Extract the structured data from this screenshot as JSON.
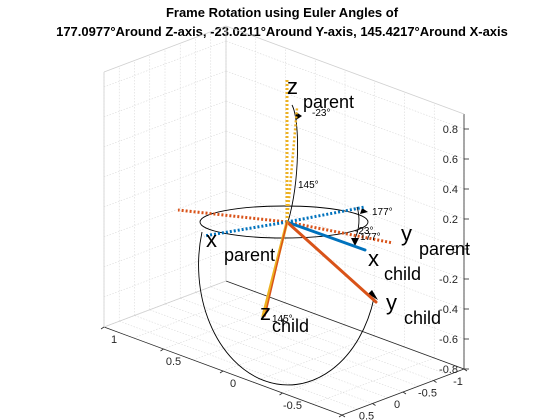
{
  "title_line1": "Frame Rotation using Euler Angles of",
  "title_line2": "177.0977°Around Z-axis, -23.0211°Around Y-axis, 145.4217°Around X-axis",
  "colors": {
    "x_axis": "#0072BD",
    "y_axis": "#D95319",
    "z_axis": "#EDB120",
    "arc": "#000000",
    "grid": "#d9d9d9",
    "box": "#262626"
  },
  "chart_data": {
    "type": "line",
    "view": "3d",
    "grid": true,
    "box": true,
    "xlim": [
      -1,
      1
    ],
    "ylim": [
      -1,
      1
    ],
    "zlim": [
      -0.8,
      0.9
    ],
    "x_ticks": [
      "-1",
      "-0.5",
      "0",
      "0.5",
      "1"
    ],
    "y_ticks": [
      "1",
      "0.5",
      "0",
      "-0.5",
      "-1"
    ],
    "z_ticks": [
      "-0.8",
      "-0.6",
      "-0.4",
      "-0.2",
      "0",
      "0.2",
      "0.4",
      "0.6",
      "0.8"
    ],
    "parent_frame": {
      "style": "dotted",
      "x": {
        "label": "x",
        "subscript": "parent"
      },
      "y": {
        "label": "y",
        "subscript": "parent"
      },
      "z": {
        "label": "z",
        "subscript": "parent"
      }
    },
    "child_frame": {
      "style": "solid",
      "x": {
        "label": "x",
        "subscript": "child"
      },
      "y": {
        "label": "y",
        "subscript": "child"
      },
      "z": {
        "label": "z",
        "subscript": "child"
      }
    },
    "angle_labels": [
      "177°",
      "177°",
      "-23°",
      "-23°",
      "145°",
      "145°"
    ]
  }
}
